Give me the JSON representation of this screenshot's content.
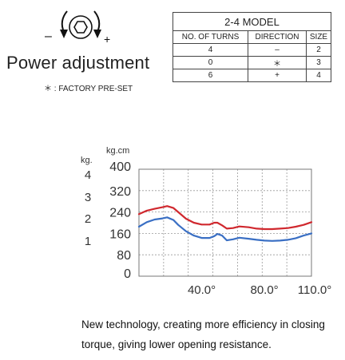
{
  "power": {
    "title": "Power adjustment",
    "note": "＊ : FACTORY PRE-SET",
    "minus_sign": "–",
    "plus_sign": "+"
  },
  "model_table": {
    "title": "2-4 MODEL",
    "headers": [
      "NO. OF TURNS",
      "DIRECTION",
      "SIZE"
    ],
    "rows": [
      [
        "4",
        "–",
        "2"
      ],
      [
        "0",
        "＊",
        "3"
      ],
      [
        "6",
        "+",
        "4"
      ]
    ]
  },
  "chart_data": {
    "type": "line",
    "kgcm_unit": "kg.cm",
    "kg_unit": "kg.",
    "kgcm_ticks": [
      "400",
      "320",
      "240",
      "160",
      "80",
      "0"
    ],
    "kg_ticks": [
      "4",
      "3",
      "2",
      "1"
    ],
    "x_tick_labels": [
      "40.0°",
      "80.0°",
      "110.0°"
    ],
    "xlim": [
      0,
      110
    ],
    "ylim": [
      0,
      400
    ],
    "grid": true,
    "series": [
      {
        "color": "#d0282e",
        "x": [
          0,
          5,
          10,
          15,
          18,
          22,
          25,
          30,
          35,
          40,
          45,
          48,
          50,
          53,
          56,
          60,
          64,
          70,
          75,
          80,
          85,
          90,
          95,
          100,
          105,
          110
        ],
        "y": [
          232,
          245,
          252,
          258,
          262,
          255,
          240,
          215,
          200,
          193,
          193,
          200,
          200,
          190,
          178,
          180,
          186,
          183,
          178,
          176,
          176,
          178,
          180,
          185,
          192,
          202
        ]
      },
      {
        "color": "#3a6fc4",
        "x": [
          0,
          5,
          10,
          15,
          18,
          22,
          25,
          30,
          35,
          40,
          45,
          48,
          50,
          53,
          56,
          60,
          64,
          70,
          75,
          80,
          85,
          90,
          95,
          100,
          105,
          110
        ],
        "y": [
          185,
          202,
          212,
          216,
          220,
          210,
          192,
          168,
          152,
          143,
          143,
          150,
          158,
          152,
          134,
          138,
          144,
          140,
          136,
          133,
          132,
          133,
          136,
          142,
          152,
          160
        ]
      }
    ]
  },
  "caption": "New technology, creating more efficiency in closing torque, giving lower opening resistance."
}
